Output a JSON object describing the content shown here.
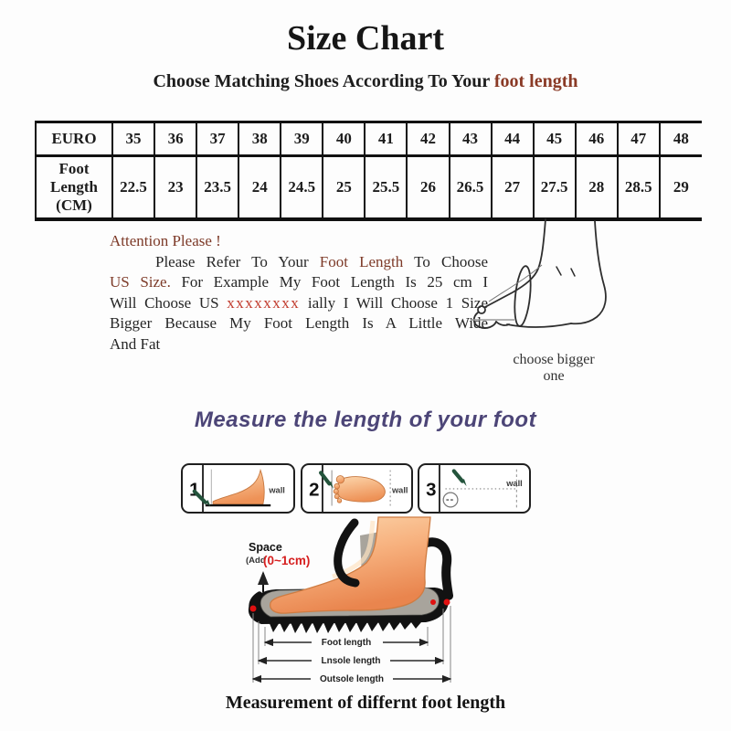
{
  "title": "Size Chart",
  "subtitle": {
    "prefix": "Choose Matching Shoes According To Your ",
    "highlight": "foot length"
  },
  "size_table": {
    "row1_header": "EURO",
    "row2_header": "Foot Length (CM)",
    "euro_sizes": [
      "35",
      "36",
      "37",
      "38",
      "39",
      "40",
      "41",
      "42",
      "43",
      "44",
      "45",
      "46",
      "47",
      "48"
    ],
    "foot_lengths_cm": [
      "22.5",
      "23",
      "23.5",
      "24",
      "24.5",
      "25",
      "25.5",
      "26",
      "26.5",
      "27",
      "27.5",
      "28",
      "28.5",
      "29"
    ]
  },
  "attention": {
    "heading": "Attention Please !",
    "line2": {
      "a": "Please Refer To Your ",
      "b": "Foot Length",
      "c": " To Choose"
    },
    "line3": {
      "a": "US Size.",
      "b": " For Example My Foot Length Is 25 cm I"
    },
    "line4": {
      "a": "Will Choose US ",
      "b": "xxxxxxxx",
      "c": " ially I Will Choose 1 Size"
    },
    "line5": "Bigger Because My Foot Length Is A Little Wide",
    "line6": "And Fat"
  },
  "foot_sketch_caption": "choose bigger one",
  "measure_heading": "Measure the length of your foot",
  "steps": [
    {
      "number": "1",
      "wall_label": "wall"
    },
    {
      "number": "2",
      "wall_label": "wall"
    },
    {
      "number": "3",
      "wall_label": "wall"
    }
  ],
  "shoe_diagram": {
    "space_label": "Space",
    "space_add_label": "(Add",
    "space_range_label": "(0~1cm)",
    "measurements": [
      "Foot length",
      "Lnsole length",
      "Outsole length"
    ]
  },
  "bottom_caption": "Measurement of differnt foot length",
  "colors": {
    "text": "#1c1c1c",
    "accent_brown": "#7d3a28",
    "accent_red": "#c13a2c",
    "heading_purple": "#4c4577",
    "skin": "#f5a873",
    "pencil_green": "#24543c",
    "insole_gray": "#a8a49c",
    "dot_red": "#e01010"
  }
}
